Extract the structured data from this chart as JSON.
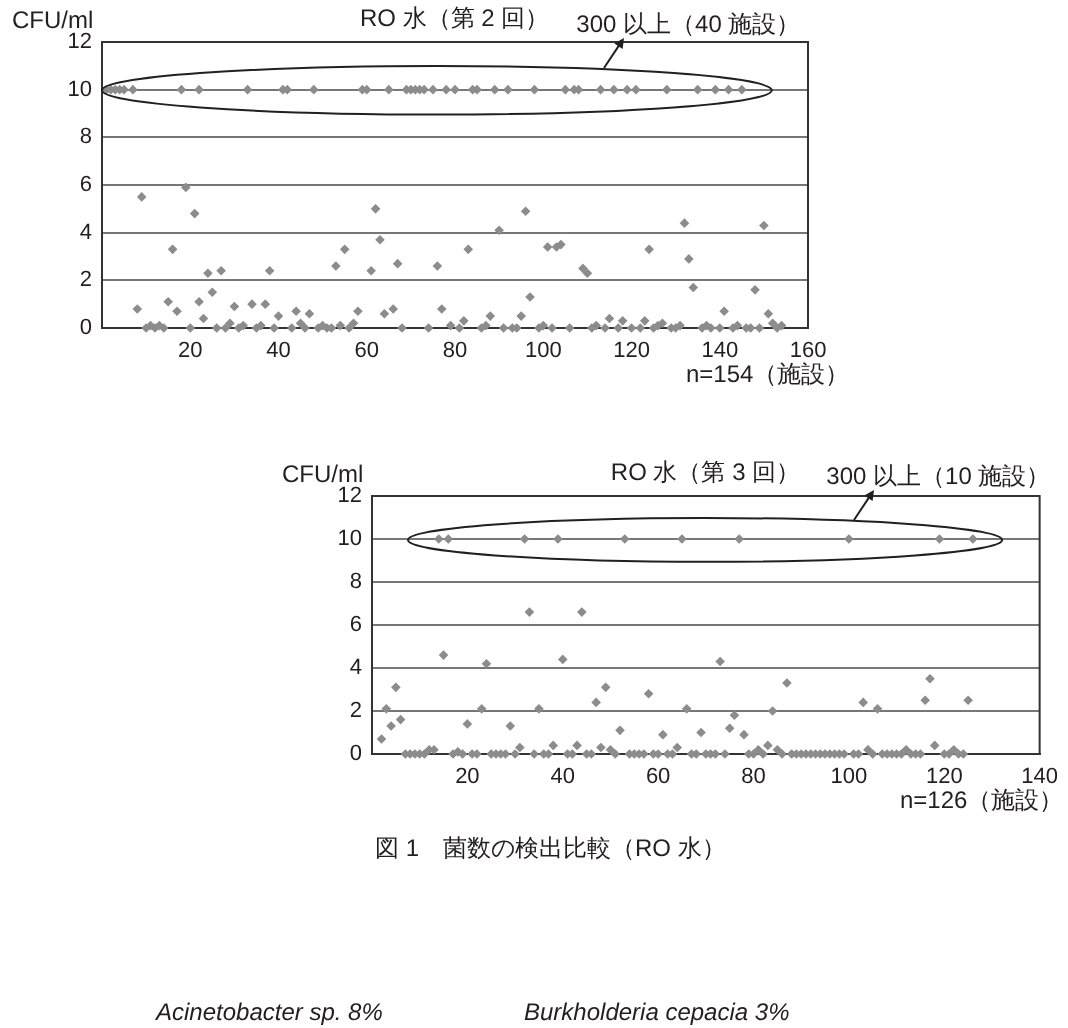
{
  "chart_data": [
    {
      "type": "scatter",
      "title": "RO 水（第 2 回）",
      "ylabel": "CFU/ml",
      "xlabel": "n=154（施設）",
      "annotations": [
        "300 以上（40 施設）"
      ],
      "xlim": [
        0,
        160
      ],
      "xticks": [
        20,
        40,
        60,
        80,
        100,
        120,
        140,
        160
      ],
      "ylim": [
        0,
        12
      ],
      "yticks": [
        0,
        2,
        4,
        6,
        8,
        10,
        12
      ],
      "grid": "y",
      "marker": "diamond",
      "series": [
        {
          "color": "#8c8c8c",
          "x": [
            1,
            2,
            3,
            4,
            5,
            7,
            8,
            9,
            10,
            11,
            12,
            13,
            14,
            15,
            16,
            17,
            18,
            19,
            20,
            21,
            22,
            22,
            23,
            24,
            25,
            26,
            27,
            28,
            29,
            30,
            31,
            32,
            33,
            34,
            35,
            36,
            37,
            38,
            39,
            40,
            41,
            42,
            43,
            44,
            45,
            46,
            47,
            48,
            49,
            50,
            51,
            52,
            53,
            54,
            55,
            56,
            57,
            58,
            59,
            60,
            61,
            62,
            63,
            64,
            65,
            66,
            67,
            68,
            69,
            70,
            71,
            72,
            73,
            74,
            75,
            76,
            77,
            78,
            79,
            80,
            81,
            82,
            83,
            84,
            85,
            86,
            87,
            88,
            89,
            90,
            91,
            92,
            93,
            94,
            95,
            96,
            97,
            98,
            99,
            100,
            101,
            102,
            103,
            104,
            105,
            106,
            107,
            108,
            109,
            110,
            111,
            112,
            113,
            114,
            115,
            116,
            117,
            118,
            119,
            120,
            121,
            122,
            123,
            124,
            125,
            126,
            127,
            128,
            129,
            130,
            131,
            132,
            133,
            134,
            135,
            136,
            137,
            138,
            139,
            140,
            141,
            142,
            143,
            144,
            145,
            146,
            147,
            148,
            149,
            150,
            151,
            152,
            153,
            154
          ],
          "values": [
            10,
            10,
            10,
            10,
            10,
            10,
            0.8,
            5.5,
            0,
            0.1,
            0,
            0.1,
            0,
            1.1,
            3.3,
            0.7,
            10,
            5.9,
            0,
            4.8,
            1.1,
            10,
            0.4,
            2.3,
            1.5,
            0,
            2.4,
            0,
            0.2,
            0.9,
            0,
            0.1,
            10,
            1,
            0,
            0.1,
            1,
            2.4,
            0,
            0.5,
            10,
            10,
            0,
            0.7,
            0.2,
            0,
            0.6,
            10,
            0,
            0.1,
            0,
            0,
            2.6,
            0.1,
            3.3,
            0,
            0.2,
            0.7,
            10,
            10,
            2.4,
            5,
            3.7,
            0.6,
            10,
            0.8,
            2.7,
            0,
            10,
            10,
            10,
            10,
            10,
            0,
            10,
            2.6,
            0.8,
            10,
            0.1,
            10,
            0,
            0.3,
            3.3,
            10,
            10,
            0,
            0.1,
            0.5,
            10,
            4.1,
            0,
            10,
            0,
            0,
            0.5,
            4.9,
            1.3,
            10,
            0,
            0.1,
            3.4,
            0,
            3.4,
            3.5,
            10,
            0,
            10,
            10,
            2.5,
            2.3,
            0,
            0.1,
            10,
            0,
            0.4,
            10,
            0,
            0.3,
            10,
            0,
            10,
            0,
            0.3,
            3.3,
            0,
            0.1,
            0.2,
            10,
            0,
            0,
            0.1,
            4.4,
            2.9,
            1.7,
            10,
            0,
            0.1,
            0,
            10,
            0,
            0.7,
            10,
            0,
            0.1,
            10,
            0,
            0,
            1.6,
            0,
            4.3,
            0.6,
            0.2,
            0,
            0.1
          ]
        }
      ]
    },
    {
      "type": "scatter",
      "title": "RO 水（第 3 回）",
      "ylabel": "CFU/ml",
      "xlabel": "n=126（施設）",
      "annotations": [
        "300 以上（10 施設）",
        "図 1　菌数の検出比較（RO 水）",
        "Acinetobacter sp. 8%",
        "Burkholderia cepacia 3%"
      ],
      "xlim": [
        0,
        140
      ],
      "xticks": [
        20,
        40,
        60,
        80,
        100,
        120,
        140
      ],
      "ylim": [
        0,
        12
      ],
      "yticks": [
        0,
        2,
        4,
        6,
        8,
        10,
        12
      ],
      "grid": "y",
      "marker": "diamond",
      "series": [
        {
          "color": "#8c8c8c",
          "x": [
            2,
            3,
            4,
            5,
            6,
            7,
            8,
            9,
            10,
            11,
            12,
            13,
            14,
            15,
            16,
            17,
            18,
            19,
            20,
            21,
            22,
            23,
            24,
            25,
            26,
            27,
            28,
            29,
            30,
            31,
            32,
            33,
            34,
            35,
            36,
            37,
            38,
            39,
            40,
            41,
            42,
            43,
            44,
            45,
            46,
            47,
            48,
            49,
            50,
            51,
            52,
            53,
            54,
            55,
            56,
            57,
            58,
            59,
            60,
            61,
            62,
            63,
            64,
            65,
            66,
            67,
            68,
            69,
            70,
            71,
            72,
            73,
            74,
            75,
            76,
            77,
            78,
            79,
            80,
            81,
            82,
            83,
            84,
            85,
            86,
            87,
            88,
            89,
            90,
            91,
            92,
            93,
            94,
            95,
            96,
            97,
            98,
            99,
            100,
            101,
            102,
            103,
            104,
            105,
            106,
            107,
            108,
            109,
            110,
            111,
            112,
            113,
            114,
            115,
            116,
            117,
            118,
            119,
            120,
            121,
            122,
            123,
            124,
            125,
            126
          ],
          "values": [
            0.7,
            2.1,
            1.3,
            3.1,
            1.6,
            0,
            0,
            0,
            0,
            0,
            0.2,
            0.2,
            10,
            4.6,
            10,
            0,
            0.1,
            0,
            1.4,
            0,
            0,
            2.1,
            4.2,
            0,
            0,
            0,
            0,
            1.3,
            0,
            0.3,
            10,
            6.6,
            0,
            2.1,
            0,
            0,
            0.4,
            10,
            4.4,
            0,
            0,
            0.4,
            6.6,
            0,
            0,
            2.4,
            0.3,
            3.1,
            0.2,
            0,
            1.1,
            10,
            0,
            0,
            0,
            0,
            2.8,
            0,
            0,
            0.9,
            0,
            0,
            0.3,
            10,
            2.1,
            0,
            0,
            1,
            0,
            0,
            0,
            4.3,
            0,
            1.2,
            1.8,
            10,
            0.9,
            0,
            0,
            0.2,
            0,
            0.4,
            2,
            0.2,
            0,
            3.3,
            0,
            0,
            0,
            0,
            0,
            0,
            0,
            0,
            0,
            0,
            0,
            0,
            10,
            0,
            0,
            2.4,
            0.2,
            0,
            2.1,
            0,
            0,
            0,
            0,
            0,
            0.2,
            0,
            0,
            0,
            2.5,
            3.5,
            0.4,
            10,
            0,
            0,
            0.2,
            0,
            0,
            2.5,
            10
          ]
        }
      ]
    }
  ]
}
